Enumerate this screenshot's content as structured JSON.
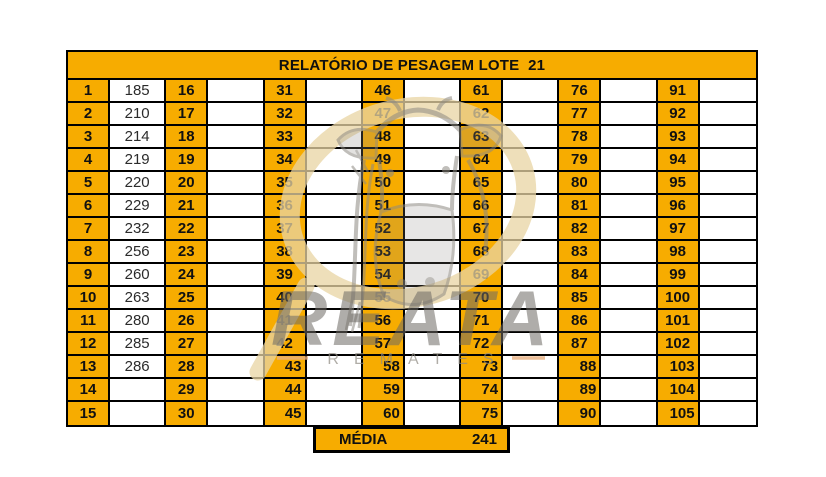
{
  "title": "RELATÓRIO DE PESAGEM LOTE  21",
  "table": {
    "groups": [
      {
        "from": 1,
        "to": 15
      },
      {
        "from": 16,
        "to": 30
      },
      {
        "from": 31,
        "to": 45
      },
      {
        "from": 46,
        "to": 60
      },
      {
        "from": 61,
        "to": 75
      },
      {
        "from": 76,
        "to": 90
      },
      {
        "from": 91,
        "to": 105
      }
    ],
    "rows_per_group": 15
  },
  "weights": {
    "1": "185",
    "2": "210",
    "3": "214",
    "4": "219",
    "5": "220",
    "6": "229",
    "7": "232",
    "8": "256",
    "9": "260",
    "10": "263",
    "11": "280",
    "12": "285",
    "13": "286"
  },
  "media": {
    "label": "MÉDIA",
    "value": "241"
  },
  "watermark": {
    "brand": "REATA",
    "subtitle": "REMATES"
  },
  "colors": {
    "accent_orange": "#F7AC00",
    "border_black": "#000000",
    "watermark_gray": "#8E8A82",
    "watermark_cream": "#E9D5A4",
    "watermark_dash": "#E8B080"
  }
}
